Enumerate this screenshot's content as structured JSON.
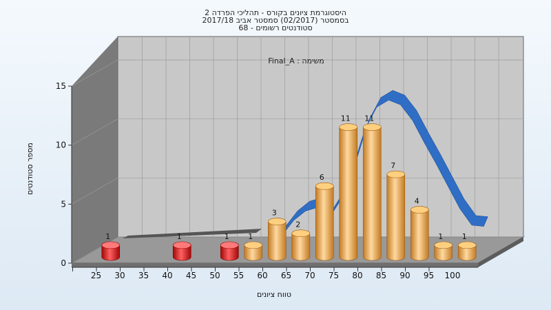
{
  "chart_data": {
    "type": "bar",
    "title": [
      "היסטוגרמת ציונים בקורס - תהליכי הפרדה 2",
      "בסמסטר  (02/2017)  סמסטר אביב 2017/18",
      "סטודנטים רשומים - 68"
    ],
    "subtitle": "משימה : Final_A",
    "xlabel": "טווח ציונים",
    "ylabel": "מספר סטודנטים",
    "x_ticks": [
      25,
      30,
      35,
      40,
      45,
      50,
      55,
      60,
      65,
      70,
      75,
      80,
      85,
      90,
      95,
      100
    ],
    "y_ticks": [
      0,
      5,
      10,
      15
    ],
    "ylim": [
      0,
      15
    ],
    "bars": [
      {
        "x": 27.5,
        "value": 1,
        "group": "fail"
      },
      {
        "x": 42.5,
        "value": 1,
        "group": "fail"
      },
      {
        "x": 52.5,
        "value": 1,
        "group": "fail"
      },
      {
        "x": 57.5,
        "value": 1,
        "group": "pass"
      },
      {
        "x": 62.5,
        "value": 3,
        "group": "pass"
      },
      {
        "x": 67.5,
        "value": 2,
        "group": "pass"
      },
      {
        "x": 72.5,
        "value": 6,
        "group": "pass"
      },
      {
        "x": 77.5,
        "value": 11,
        "group": "pass"
      },
      {
        "x": 82.5,
        "value": 11,
        "group": "pass"
      },
      {
        "x": 87.5,
        "value": 7,
        "group": "pass"
      },
      {
        "x": 92.5,
        "value": 4,
        "group": "pass"
      },
      {
        "x": 97.5,
        "value": 1,
        "group": "pass"
      },
      {
        "x": 102.5,
        "value": 1,
        "group": "pass"
      }
    ],
    "curve": {
      "x": [
        57.5,
        60,
        62.5,
        65,
        67.5,
        70,
        72.5,
        75,
        77.5,
        80,
        82.5,
        85,
        87.5,
        90,
        92.5,
        95,
        97.5,
        100,
        102.5
      ],
      "y": [
        0.6,
        1.5,
        2.8,
        3.6,
        3.9,
        3.0,
        4.6,
        7.3,
        10.5,
        12.4,
        13.0,
        12.6,
        11.3,
        9.4,
        7.6,
        5.7,
        3.8,
        2.4,
        2.3
      ]
    },
    "colors": {
      "pass": "#e8a848",
      "fail": "#e01818",
      "curve": "#2f6ec4",
      "back_wall": "#c8c8c8",
      "side_wall": "#7a7a7a",
      "floor": "#999999"
    },
    "grid": true
  }
}
